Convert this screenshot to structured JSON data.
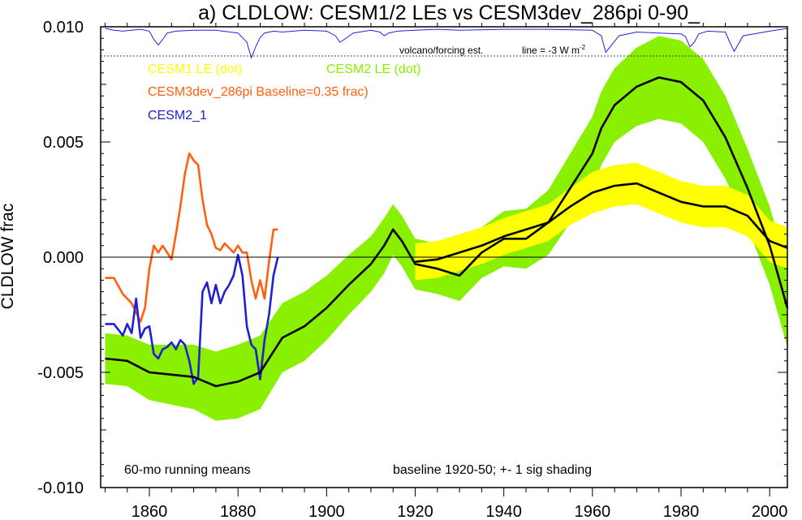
{
  "chart_data": {
    "type": "line",
    "title": "a) CLDLOW: CESM1/2 LEs vs CESM3dev_286pi 0-90_",
    "ylabel": "CLDLOW frac",
    "xlabel": "",
    "xlim": [
      1849,
      2004
    ],
    "ylim": [
      -0.01,
      0.01
    ],
    "x_ticks": [
      1860,
      1880,
      1900,
      1920,
      1940,
      1960,
      1980,
      2000
    ],
    "y_ticks": [
      "0.010",
      "0.005",
      "0.000",
      "-0.005",
      "-0.010"
    ],
    "legend": {
      "cesm1": "CESM1 LE (dot)",
      "cesm2": "CESM2 LE (dot)",
      "cesm3": "CESM3dev_286pi Baseline=0.35 frac)",
      "cesm21": "CESM2_1"
    },
    "annotations": {
      "running_means": "60-mo running means",
      "baseline": "baseline 1920-50; +- 1 sig shading",
      "volcano": "volcano/forcing est.",
      "forcing_line": "line = -3 W m",
      "forcing_sup": "-2"
    },
    "colors": {
      "cesm1_shade": "#ffff00",
      "cesm2_shade": "#88f000",
      "ensemble_mean": "#000000",
      "cesm3": "#ff6010",
      "cesm21": "#2020d0",
      "volcano": "#2222dd"
    },
    "series": [
      {
        "name": "CESM2 LE (dot)",
        "x": [
          1850,
          1855,
          1860,
          1865,
          1870,
          1875,
          1880,
          1885,
          1890,
          1895,
          1900,
          1905,
          1910,
          1913,
          1915,
          1917,
          1920,
          1925,
          1930,
          1935,
          1940,
          1945,
          1950,
          1955,
          1960,
          1962,
          1965,
          1970,
          1975,
          1980,
          1985,
          1990,
          1995,
          2000,
          2004
        ],
        "mean": [
          -0.0044,
          -0.0045,
          -0.005,
          -0.0051,
          -0.0052,
          -0.0056,
          -0.0054,
          -0.005,
          -0.0035,
          -0.003,
          -0.0022,
          -0.0012,
          -0.0003,
          0.0005,
          0.0012,
          0.0007,
          -0.0003,
          -0.0005,
          -0.0008,
          0.0002,
          0.0008,
          0.0008,
          0.0015,
          0.003,
          0.0045,
          0.0056,
          0.0066,
          0.0074,
          0.0078,
          0.0076,
          0.0068,
          0.0052,
          0.003,
          0.0005,
          -0.0022
        ],
        "sigma": [
          0.0011,
          0.0011,
          0.0012,
          0.0013,
          0.0014,
          0.0015,
          0.0016,
          0.0016,
          0.0015,
          0.0015,
          0.0014,
          0.0013,
          0.0012,
          0.0012,
          0.0011,
          0.0011,
          0.0011,
          0.0011,
          0.0011,
          0.0011,
          0.0012,
          0.0013,
          0.0014,
          0.0015,
          0.0016,
          0.0016,
          0.0016,
          0.0017,
          0.0018,
          0.0018,
          0.0018,
          0.0018,
          0.0017,
          0.0017,
          0.0017
        ]
      },
      {
        "name": "CESM1 LE (dot)",
        "x": [
          1920,
          1925,
          1930,
          1935,
          1940,
          1945,
          1950,
          1955,
          1960,
          1965,
          1970,
          1975,
          1980,
          1985,
          1990,
          1995,
          2000,
          2004
        ],
        "mean": [
          -0.0002,
          -0.0001,
          0.0002,
          0.0005,
          0.0009,
          0.0012,
          0.0015,
          0.0022,
          0.0028,
          0.0031,
          0.0032,
          0.0028,
          0.0024,
          0.0022,
          0.0022,
          0.0018,
          0.0007,
          0.0004
        ],
        "sigma": [
          0.0008,
          0.0008,
          0.0008,
          0.0008,
          0.0008,
          0.0008,
          0.0008,
          0.0008,
          0.0009,
          0.0009,
          0.0009,
          0.0009,
          0.0009,
          0.0009,
          0.0009,
          0.0009,
          0.0009,
          0.0009
        ]
      },
      {
        "name": "CESM3dev_286pi Baseline=0.35 frac)",
        "x": [
          1850,
          1852,
          1854,
          1856,
          1858,
          1859,
          1860,
          1861,
          1862,
          1863,
          1864,
          1865,
          1866,
          1867,
          1868,
          1869,
          1870,
          1871,
          1872,
          1873,
          1874,
          1875,
          1876,
          1877,
          1878,
          1879,
          1880,
          1881,
          1882,
          1883,
          1884,
          1885,
          1886,
          1887,
          1888,
          1889
        ],
        "values": [
          -0.0009,
          -0.0009,
          -0.0016,
          -0.002,
          -0.0028,
          -0.0022,
          -0.0005,
          0.0005,
          0.0002,
          0.0005,
          0.0002,
          -0.0001,
          0.001,
          0.0022,
          0.0036,
          0.0045,
          0.0042,
          0.004,
          0.0025,
          0.0014,
          0.001,
          0.0004,
          0.0003,
          0.0006,
          0.0004,
          0.0002,
          0.0005,
          0.0002,
          0.0002,
          -0.001,
          -0.0018,
          -0.001,
          -0.0018,
          -0.0002,
          0.0012,
          0.0012
        ]
      },
      {
        "name": "CESM2_1",
        "x": [
          1850,
          1852,
          1854,
          1855,
          1856,
          1857,
          1858,
          1859,
          1860,
          1861,
          1862,
          1863,
          1864,
          1865,
          1866,
          1867,
          1868,
          1869,
          1870,
          1871,
          1872,
          1873,
          1874,
          1875,
          1876,
          1877,
          1878,
          1879,
          1880,
          1881,
          1882,
          1883,
          1884,
          1885,
          1886,
          1887,
          1888,
          1889
        ],
        "values": [
          -0.0029,
          -0.0029,
          -0.0034,
          -0.0029,
          -0.0033,
          -0.0018,
          -0.0035,
          -0.0031,
          -0.003,
          -0.0042,
          -0.0044,
          -0.004,
          -0.0039,
          -0.0037,
          -0.004,
          -0.0036,
          -0.0038,
          -0.0045,
          -0.0055,
          -0.0052,
          -0.0015,
          -0.0011,
          -0.002,
          -0.0012,
          -0.002,
          -0.0015,
          -0.0012,
          -0.0008,
          0.0001,
          -0.0008,
          -0.003,
          -0.0038,
          -0.004,
          -0.0053,
          -0.0036,
          -0.0025,
          -0.0008,
          0.0
        ]
      },
      {
        "name": "",
        "role": "volcano forcing estimate",
        "x": [
          1850,
          1852,
          1854,
          1856,
          1858,
          1860,
          1861,
          1862,
          1863,
          1864,
          1866,
          1870,
          1875,
          1880,
          1882,
          1883,
          1884,
          1885,
          1886,
          1888,
          1890,
          1895,
          1900,
          1902,
          1903,
          1904,
          1906,
          1910,
          1912,
          1913,
          1914,
          1916,
          1920,
          1925,
          1930,
          1940,
          1950,
          1960,
          1962,
          1963,
          1964,
          1966,
          1970,
          1975,
          1980,
          1981,
          1982,
          1983,
          1984,
          1986,
          1990,
          1991,
          1992,
          1994,
          2000,
          2004
        ],
        "values": [
          0,
          -0.2,
          -0.3,
          -0.2,
          -0.1,
          -0.3,
          -1.2,
          -1.8,
          -1.2,
          -0.5,
          -0.3,
          -0.2,
          -0.2,
          -0.5,
          -1.5,
          -3.2,
          -2.0,
          -1.0,
          -0.5,
          -0.3,
          -0.4,
          -0.2,
          -0.3,
          -0.8,
          -1.5,
          -1.2,
          -0.5,
          -0.2,
          -0.4,
          -0.8,
          -0.5,
          -0.3,
          -0.2,
          -0.1,
          -0.2,
          -0.1,
          -0.1,
          -0.2,
          -0.8,
          -2.6,
          -2.0,
          -0.8,
          -0.4,
          -0.5,
          -0.6,
          -0.9,
          -2.0,
          -1.5,
          -0.6,
          -0.3,
          -0.4,
          -1.5,
          -2.5,
          -0.8,
          -0.3,
          0
        ]
      }
    ]
  }
}
